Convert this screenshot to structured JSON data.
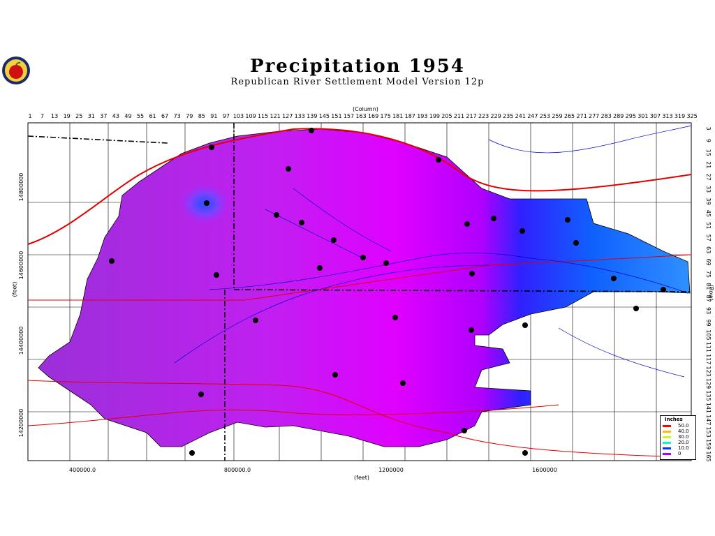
{
  "title": "Precipitation  1954",
  "subtitle": "Republican  River  Settlement  Model  Version  12p",
  "axes": {
    "column_label": "(Column)",
    "row_label": "(Row)",
    "xfeet_label": "(feet)",
    "yfeet_label": "(feet)",
    "column_ticks": [
      "1",
      "7",
      "13",
      "19",
      "25",
      "31",
      "37",
      "43",
      "49",
      "55",
      "61",
      "67",
      "73",
      "79",
      "85",
      "91",
      "97",
      "103",
      "109",
      "115",
      "121",
      "127",
      "133",
      "139",
      "145",
      "151",
      "157",
      "163",
      "169",
      "175",
      "181",
      "187",
      "193",
      "199",
      "205",
      "211",
      "217",
      "223",
      "229",
      "235",
      "241",
      "247",
      "253",
      "259",
      "265",
      "271",
      "277",
      "283",
      "289",
      "295",
      "301",
      "307",
      "313",
      "319",
      "325"
    ],
    "row_ticks": [
      "3",
      "9",
      "15",
      "21",
      "27",
      "33",
      "39",
      "45",
      "51",
      "57",
      "63",
      "69",
      "75",
      "81",
      "87",
      "93",
      "99",
      "105",
      "111",
      "117",
      "123",
      "129",
      "135",
      "141",
      "147",
      "153",
      "159",
      "165"
    ],
    "x_feet_ticks": [
      "400000.0",
      "800000.0",
      "1200000",
      "1600000"
    ],
    "y_feet_ticks": [
      "14800000",
      "14600000",
      "14400000",
      "14200000"
    ]
  },
  "legend": {
    "title": "Inches",
    "entries": [
      {
        "label": "50.0",
        "color": "#ff0000"
      },
      {
        "label": "40.0",
        "color": "#ffbb00"
      },
      {
        "label": "30.0",
        "color": "#c8ff00"
      },
      {
        "label": "20.0",
        "color": "#00ffcc"
      },
      {
        "label": "10.0",
        "color": "#0033ff"
      },
      {
        "label": "0",
        "color": "#aa00ff"
      }
    ]
  },
  "colors": {
    "precip_low": "#9a30d8",
    "precip_mid": "#e000ff",
    "precip_high": "#1040ff",
    "roads": "#e00000",
    "rivers": "#0000d0",
    "county_lines": "#000000"
  }
}
